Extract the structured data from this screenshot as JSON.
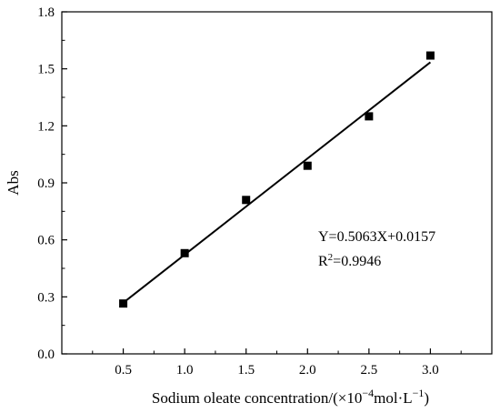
{
  "chart_data": {
    "type": "scatter",
    "xlabel": {
      "prefix": "Sodium oleate concentration/(×10",
      "exponent": "−4",
      "middle": "mol·L",
      "exponent2": "−1",
      "suffix": ")"
    },
    "ylabel": "Abs",
    "xlim": [
      0,
      3.5
    ],
    "ylim": [
      0,
      1.8
    ],
    "x_ticks": [
      "0.5",
      "1.0",
      "1.5",
      "2.0",
      "2.5",
      "3.0"
    ],
    "x_tick_values": [
      0.5,
      1.0,
      1.5,
      2.0,
      2.5,
      3.0
    ],
    "y_ticks": [
      "0.0",
      "0.3",
      "0.6",
      "0.9",
      "1.2",
      "1.5",
      "1.8"
    ],
    "y_tick_values": [
      0.0,
      0.3,
      0.6,
      0.9,
      1.2,
      1.5,
      1.8
    ],
    "series": [
      {
        "points": [
          {
            "x": 0.5,
            "y": 0.265
          },
          {
            "x": 1.0,
            "y": 0.53
          },
          {
            "x": 1.5,
            "y": 0.81
          },
          {
            "x": 2.0,
            "y": 0.99
          },
          {
            "x": 2.5,
            "y": 1.25
          },
          {
            "x": 3.0,
            "y": 1.57
          }
        ],
        "marker": "square",
        "color": "#000000"
      }
    ],
    "fit_line": {
      "slope": 0.5063,
      "intercept": 0.0157,
      "x_range": [
        0.5,
        3.0
      ]
    },
    "annotations": {
      "equation": "Y=0.5063X+0.0157",
      "r2_prefix": "R",
      "r2_exponent": "2",
      "r2_suffix": "=0.9946"
    },
    "grid": false
  }
}
